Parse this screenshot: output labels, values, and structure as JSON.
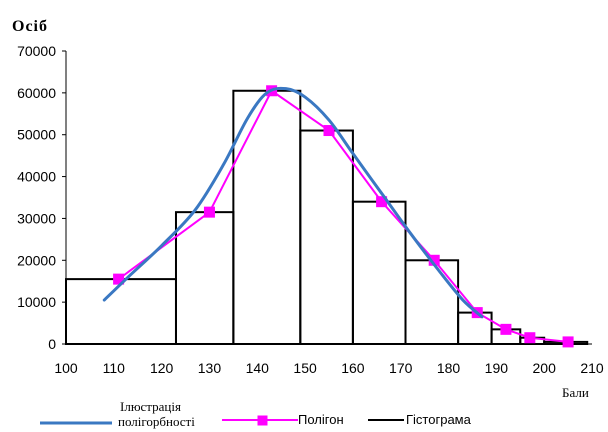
{
  "chart_data": {
    "type": "combo",
    "ylabel": "Осіб",
    "xlabel": "Бали",
    "xlim": [
      100,
      210
    ],
    "ylim": [
      0,
      70000
    ],
    "xticks": [
      100,
      110,
      120,
      130,
      140,
      150,
      160,
      170,
      180,
      190,
      200,
      210
    ],
    "yticks": [
      0,
      10000,
      20000,
      30000,
      40000,
      50000,
      60000,
      70000
    ],
    "grid": false,
    "legend_position": "bottom",
    "series": [
      {
        "name": "Гістограма",
        "type": "histogram",
        "color": "#000000",
        "bins": [
          {
            "from": 100,
            "to": 123,
            "value": 15500
          },
          {
            "from": 123,
            "to": 135,
            "value": 31500
          },
          {
            "from": 135,
            "to": 149,
            "value": 60500
          },
          {
            "from": 149,
            "to": 160,
            "value": 51000
          },
          {
            "from": 160,
            "to": 171,
            "value": 34000
          },
          {
            "from": 171,
            "to": 182,
            "value": 20000
          },
          {
            "from": 182,
            "to": 189,
            "value": 7500
          },
          {
            "from": 189,
            "to": 195,
            "value": 3500
          },
          {
            "from": 195,
            "to": 200,
            "value": 1500
          },
          {
            "from": 200,
            "to": 209,
            "value": 500
          }
        ]
      },
      {
        "name": "Полігон",
        "type": "line",
        "color": "#ff00ff",
        "marker": "square",
        "x": [
          111,
          130,
          143,
          155,
          166,
          177,
          186,
          192,
          197,
          205
        ],
        "y": [
          15500,
          31500,
          60500,
          51000,
          34000,
          20000,
          7500,
          3500,
          1500,
          500
        ]
      },
      {
        "name": "Ілюстрація полігорбності",
        "name_lines": [
          "Ілюстрація",
          "полігорбності"
        ],
        "type": "line",
        "color": "#3a78c2",
        "smooth": true,
        "x": [
          108,
          113,
          120,
          127,
          133,
          138,
          142,
          146,
          150,
          155,
          160,
          166,
          172,
          178,
          183,
          187
        ],
        "y": [
          10500,
          16000,
          23500,
          32000,
          43000,
          54000,
          60000,
          61000,
          59000,
          53500,
          45500,
          36000,
          26500,
          17500,
          10500,
          6500
        ]
      }
    ]
  }
}
